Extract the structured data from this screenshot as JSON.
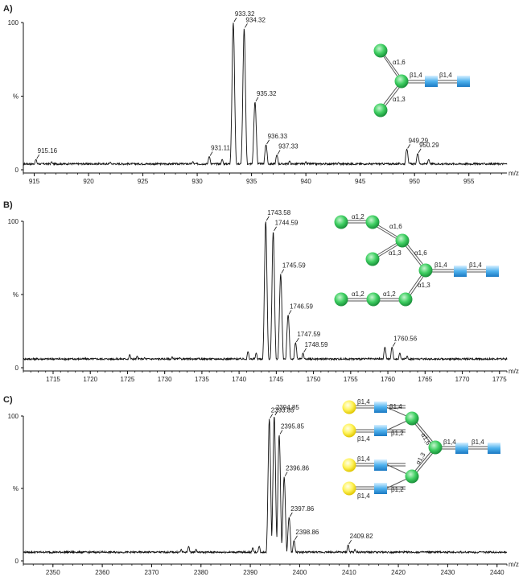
{
  "chart_data": [
    {
      "type": "line",
      "panel_label": "A)",
      "xlim": [
        914,
        958.5
      ],
      "ylim": [
        0,
        100
      ],
      "x_ticks": [
        915,
        920,
        925,
        930,
        935,
        940,
        945,
        950,
        955
      ],
      "y_ticks": [
        {
          "v": 0,
          "label": "0"
        },
        {
          "v": 50,
          "label": "%"
        },
        {
          "v": 100,
          "label": "100"
        }
      ],
      "x_unit": "m/z",
      "baseline": 4,
      "peaks": [
        [
          915.16,
          7
        ],
        [
          916.6,
          5.5
        ],
        [
          922,
          5.2
        ],
        [
          929.6,
          5.6
        ],
        [
          931.11,
          9
        ],
        [
          932.3,
          7
        ],
        [
          933.32,
          100
        ],
        [
          934.32,
          96
        ],
        [
          935.32,
          46
        ],
        [
          936.33,
          17
        ],
        [
          937.33,
          10
        ],
        [
          938.5,
          6
        ],
        [
          940,
          5.5
        ],
        [
          943,
          5
        ],
        [
          949.29,
          14
        ],
        [
          950.29,
          11
        ],
        [
          951.3,
          7
        ]
      ],
      "labels": [
        {
          "x": 915.16,
          "text": "915.16"
        },
        {
          "x": 931.11,
          "text": "931.11"
        },
        {
          "x": 933.32,
          "text": "933.32"
        },
        {
          "x": 934.32,
          "text": "934.32"
        },
        {
          "x": 935.32,
          "text": "935.32"
        },
        {
          "x": 936.33,
          "text": "936.33"
        },
        {
          "x": 937.33,
          "text": "937.33"
        },
        {
          "x": 949.29,
          "text": "949.29"
        },
        {
          "x": 950.29,
          "text": "950.29"
        }
      ],
      "glycan_linkages": [
        "α1,6",
        "α1,3",
        "β1,4",
        "β1,4"
      ]
    },
    {
      "type": "line",
      "panel_label": "B)",
      "xlim": [
        1711,
        1776
      ],
      "ylim": [
        0,
        100
      ],
      "x_ticks": [
        1715,
        1720,
        1725,
        1730,
        1735,
        1740,
        1745,
        1750,
        1755,
        1760,
        1765,
        1770,
        1775
      ],
      "y_ticks": [
        {
          "v": 0,
          "label": "0"
        },
        {
          "v": 50,
          "label": "%"
        },
        {
          "v": 100,
          "label": "100"
        }
      ],
      "x_unit": "m/z",
      "baseline": 6,
      "peaks": [
        [
          1725.3,
          9
        ],
        [
          1726.3,
          8
        ],
        [
          1727.3,
          7
        ],
        [
          1731,
          7.5
        ],
        [
          1732,
          7
        ],
        [
          1741.2,
          11
        ],
        [
          1742.3,
          10
        ],
        [
          1743.58,
          100
        ],
        [
          1744.59,
          93
        ],
        [
          1745.59,
          64
        ],
        [
          1746.59,
          36
        ],
        [
          1747.59,
          17
        ],
        [
          1748.59,
          10
        ],
        [
          1759.6,
          14
        ],
        [
          1760.56,
          14
        ],
        [
          1761.6,
          10
        ],
        [
          1762.6,
          8
        ]
      ],
      "labels": [
        {
          "x": 1743.58,
          "text": "1743.58"
        },
        {
          "x": 1744.59,
          "text": "1744.59"
        },
        {
          "x": 1745.59,
          "text": "1745.59"
        },
        {
          "x": 1746.59,
          "text": "1746.59"
        },
        {
          "x": 1747.59,
          "text": "1747.59"
        },
        {
          "x": 1748.59,
          "text": "1748.59"
        },
        {
          "x": 1760.56,
          "text": "1760.56"
        }
      ],
      "glycan_linkages": [
        "α1,2",
        "α1,6",
        "α1,3",
        "α1,6",
        "β1,4",
        "β1,4",
        "α1,3",
        "α1,2",
        "α1,2"
      ]
    },
    {
      "type": "line",
      "panel_label": "C)",
      "xlim": [
        2344,
        2442
      ],
      "ylim": [
        0,
        100
      ],
      "x_ticks": [
        2350,
        2360,
        2370,
        2380,
        2390,
        2400,
        2410,
        2420,
        2430,
        2440
      ],
      "y_ticks": [
        {
          "v": 0,
          "label": "0"
        },
        {
          "v": 50,
          "label": "%"
        },
        {
          "v": 100,
          "label": "100"
        }
      ],
      "x_unit": "m/z",
      "baseline": 6,
      "peaks": [
        [
          2376,
          8
        ],
        [
          2377.5,
          10
        ],
        [
          2379,
          8
        ],
        [
          2390.5,
          9
        ],
        [
          2391.8,
          10
        ],
        [
          2393.85,
          98
        ],
        [
          2394.85,
          100
        ],
        [
          2395.85,
          87
        ],
        [
          2396.86,
          58
        ],
        [
          2397.86,
          30
        ],
        [
          2398.86,
          14
        ],
        [
          2409.82,
          11
        ],
        [
          2411.2,
          8
        ],
        [
          2412.5,
          6
        ]
      ],
      "labels": [
        {
          "x": 2393.85,
          "text": "2393.85"
        },
        {
          "x": 2394.85,
          "text": "2394.85"
        },
        {
          "x": 2395.85,
          "text": "2395.85"
        },
        {
          "x": 2396.86,
          "text": "2396.86"
        },
        {
          "x": 2397.86,
          "text": "2397.86"
        },
        {
          "x": 2398.86,
          "text": "2398.86"
        },
        {
          "x": 2409.82,
          "text": "2409.82"
        }
      ],
      "glycan_linkages": [
        "β1,4",
        "β1,4",
        "β1,4",
        "β1,2",
        "α1,6",
        "β1,4",
        "β1,4",
        "β1,4",
        "α1,3",
        "β1,4",
        "β1,2"
      ]
    }
  ]
}
